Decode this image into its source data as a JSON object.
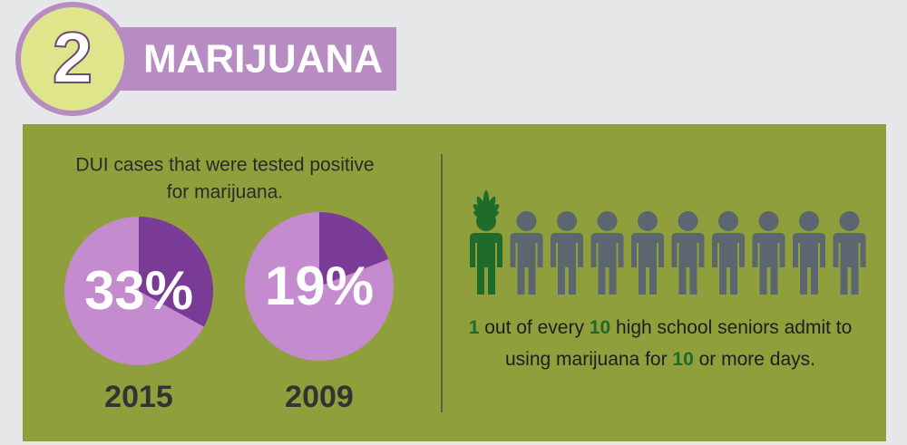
{
  "header": {
    "number": "2",
    "title": "MARIJUANA"
  },
  "pies": {
    "caption": [
      "DUI cases that were tested positive",
      "for marijuana."
    ],
    "items": [
      {
        "value": 33,
        "label": "33%",
        "year": "2015"
      },
      {
        "value": 19,
        "label": "19%",
        "year": "2009"
      }
    ]
  },
  "figures": {
    "total": 10,
    "highlighted": 1
  },
  "statement": [
    [
      "1",
      " out of every ",
      "10",
      " high school seniors admit to"
    ],
    [
      "using marijuana for ",
      "10",
      " or more days."
    ]
  ]
}
